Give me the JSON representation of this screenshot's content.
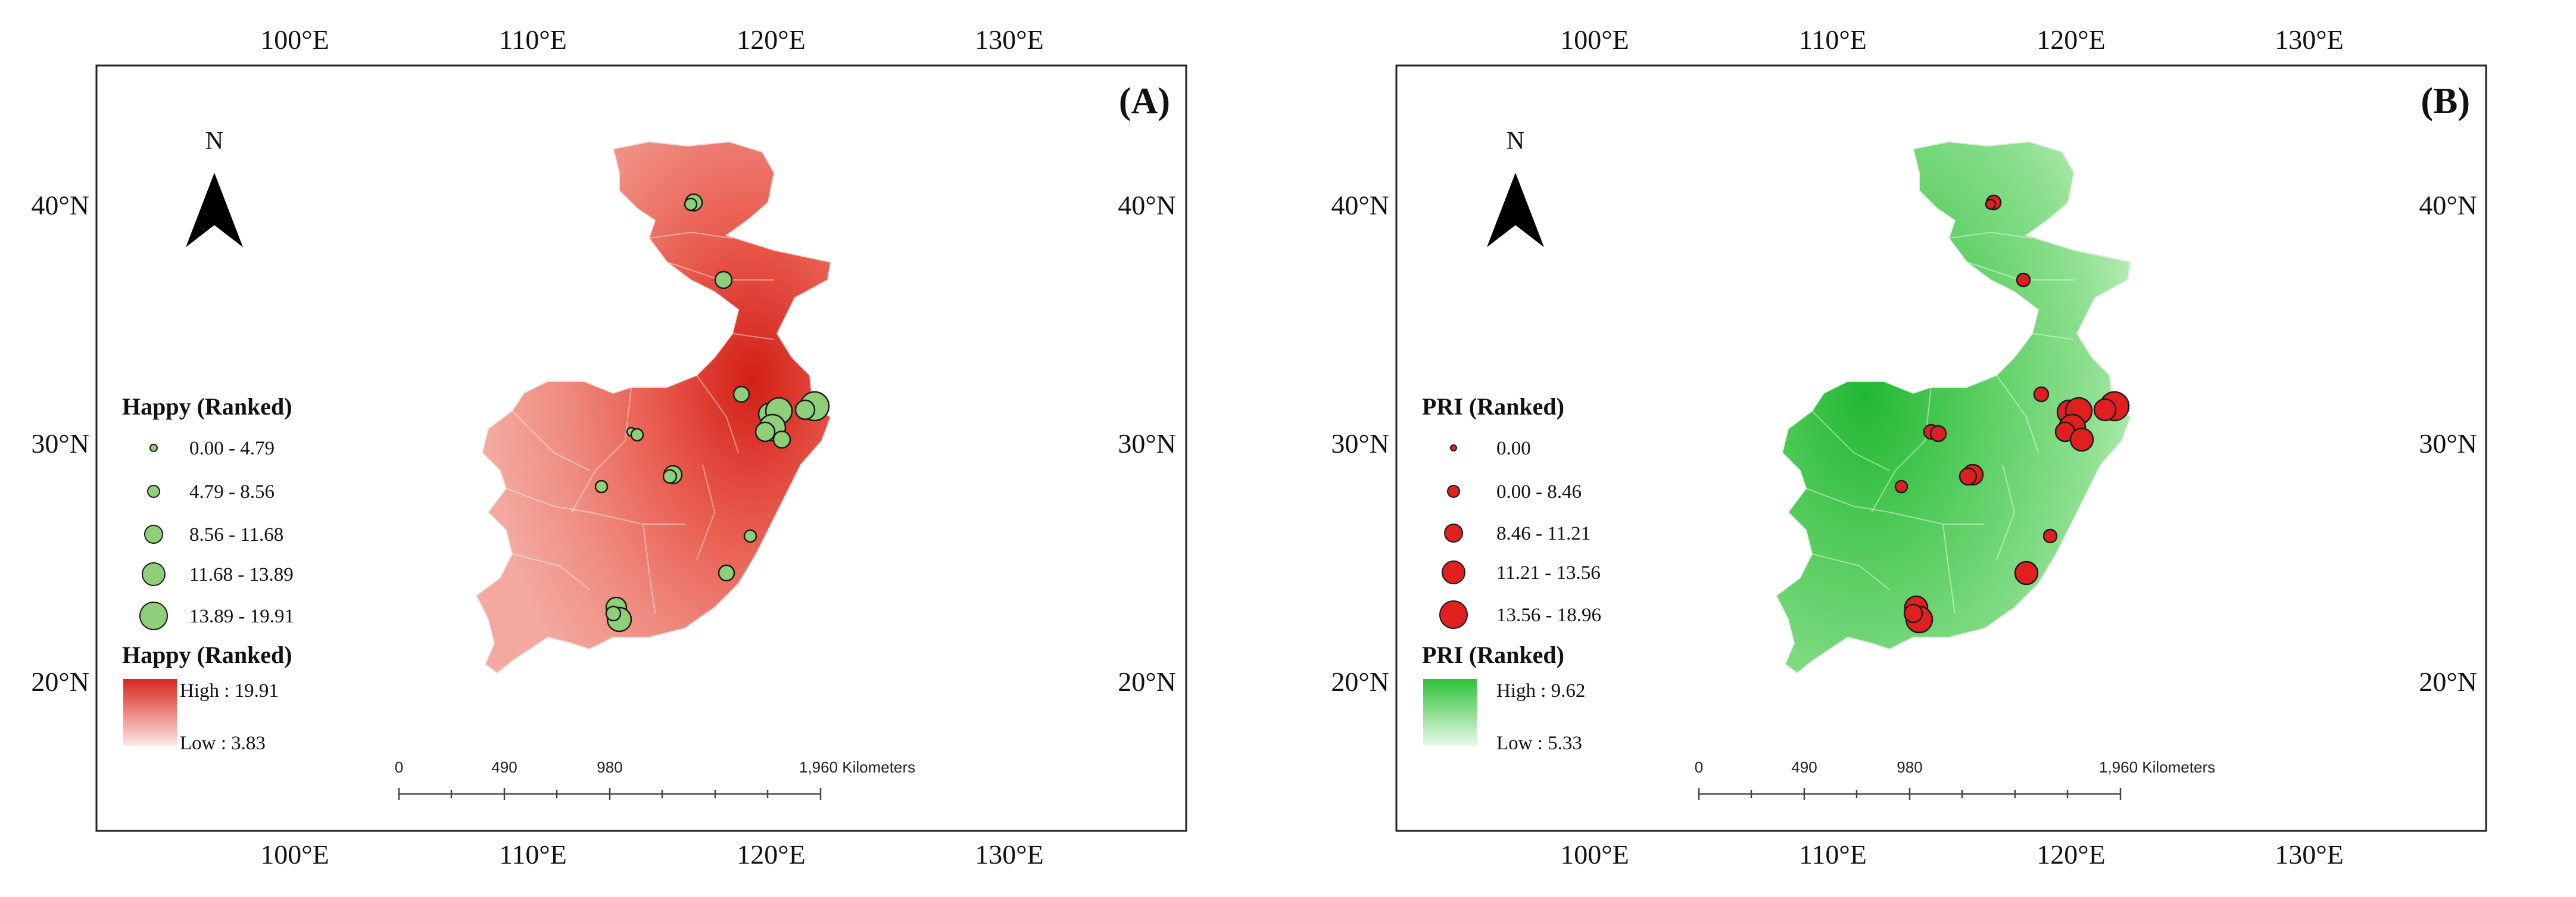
{
  "panels": [
    {
      "label": "(A)",
      "north": "N",
      "top_ticks": [
        "100°E",
        "110°E",
        "120°E",
        "130°E"
      ],
      "bottom_ticks": [
        "100°E",
        "110°E",
        "120°E",
        "130°E"
      ],
      "left_ticks": [
        "40°N",
        "30°N",
        "20°N"
      ],
      "right_ticks": [
        "40°N",
        "30°N",
        "20°N"
      ],
      "points_legend": {
        "title": "Happy (Ranked)",
        "items": [
          "0.00 - 4.79",
          "4.79 - 8.56",
          "8.56 - 11.68",
          "11.68 - 13.89",
          "13.89 - 19.91"
        ]
      },
      "surface_legend": {
        "title": "Happy (Ranked)",
        "high": "High : 19.91",
        "low": "Low : 3.83"
      },
      "scale": {
        "labels": [
          "0",
          "490",
          "980",
          "1,960 Kilometers"
        ]
      },
      "colors": {
        "fill_high": "#d9251c",
        "fill_low": "#fbe3e1",
        "marker": "#8fcf7a",
        "marker_stroke": "#1b1b1b"
      }
    },
    {
      "label": "(B)",
      "north": "N",
      "top_ticks": [
        "100°E",
        "110°E",
        "120°E",
        "130°E"
      ],
      "bottom_ticks": [
        "100°E",
        "110°E",
        "120°E",
        "130°E"
      ],
      "left_ticks": [
        "40°N",
        "30°N",
        "20°N"
      ],
      "right_ticks": [
        "40°N",
        "30°N",
        "20°N"
      ],
      "points_legend": {
        "title": "PRI (Ranked)",
        "items": [
          "0.00",
          "0.00 - 8.46",
          "8.46 - 11.21",
          "11.21 - 13.56",
          "13.56 - 18.96"
        ]
      },
      "surface_legend": {
        "title": "PRI (Ranked)",
        "high": "High : 9.62",
        "low": "Low : 5.33"
      },
      "scale": {
        "labels": [
          "0",
          "490",
          "980",
          "1,960 Kilometers"
        ]
      },
      "colors": {
        "fill_high": "#2fc23a",
        "fill_low": "#e6f8e5",
        "marker": "#e01f1f",
        "marker_stroke": "#1b1b1b"
      }
    }
  ]
}
